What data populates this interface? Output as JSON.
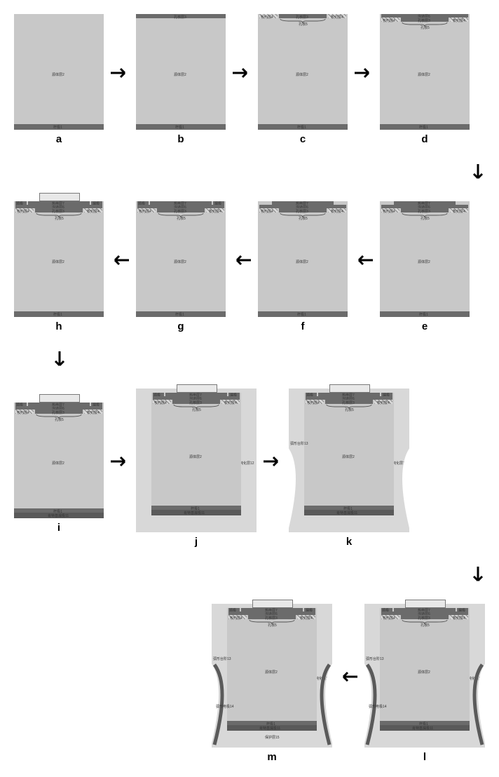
{
  "colors": {
    "substrate_fill": "#c8c8c8",
    "substrate_dark": "#6b6b6b",
    "band_dark": "#6b6b6b",
    "hatch_bg": "#d8d8d8",
    "passivation": "#d8d8d8",
    "membrane_fill": "#e8e8e8",
    "membrane_border": "#7a7a7a",
    "arc_stroke": "#5a5a5a",
    "arrow": "#000000"
  },
  "dims": {
    "small_w": 128,
    "small_h": 165,
    "big_w": 172,
    "big_h": 205,
    "med_w": 150,
    "med_h": 190
  },
  "labels": {
    "substrate": "源体层2",
    "back_top": "杆极1",
    "back_bottom": "杆极1",
    "nuc_band": "孔核层3",
    "res_left": "牧约层4",
    "res_right": "牧约层4",
    "trench": "沟道层6",
    "thermo": "热电层7",
    "brace": "孔核5",
    "source_l": "源极",
    "source_r": "漏极",
    "membrane": "膜极10",
    "schottky": "肖特基漏极11",
    "passivation": "钝化层12",
    "arccut": "弧形台阶13",
    "elec14": "弧形电极14",
    "protect": "保护层15"
  },
  "captions": [
    "a",
    "b",
    "c",
    "d",
    "e",
    "f",
    "g",
    "h",
    "i",
    "j",
    "k",
    "l",
    "m"
  ]
}
